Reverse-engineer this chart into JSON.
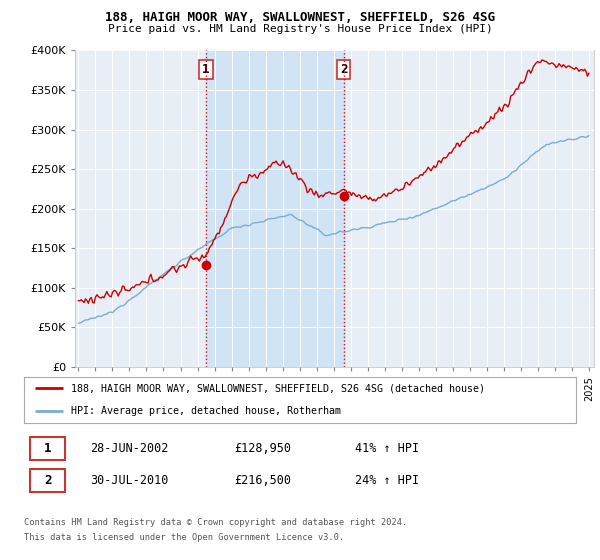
{
  "title1": "188, HAIGH MOOR WAY, SWALLOWNEST, SHEFFIELD, S26 4SG",
  "title2": "Price paid vs. HM Land Registry's House Price Index (HPI)",
  "legend_line1": "188, HAIGH MOOR WAY, SWALLOWNEST, SHEFFIELD, S26 4SG (detached house)",
  "legend_line2": "HPI: Average price, detached house, Rotherham",
  "point1_date": "28-JUN-2002",
  "point1_price": "£128,950",
  "point1_hpi": "41% ↑ HPI",
  "point2_date": "30-JUL-2010",
  "point2_price": "£216,500",
  "point2_hpi": "24% ↑ HPI",
  "footnote1": "Contains HM Land Registry data © Crown copyright and database right 2024.",
  "footnote2": "This data is licensed under the Open Government Licence v3.0.",
  "red_color": "#cc0000",
  "blue_color": "#7aadd4",
  "shade_color": "#d0e4f5",
  "background_color": "#e8eef5",
  "grid_color": "#ffffff",
  "point1_x": 2002.49,
  "point1_y": 128950,
  "point2_x": 2010.58,
  "point2_y": 216500,
  "ylim": [
    0,
    400000
  ],
  "xlim": [
    1994.8,
    2025.3
  ]
}
